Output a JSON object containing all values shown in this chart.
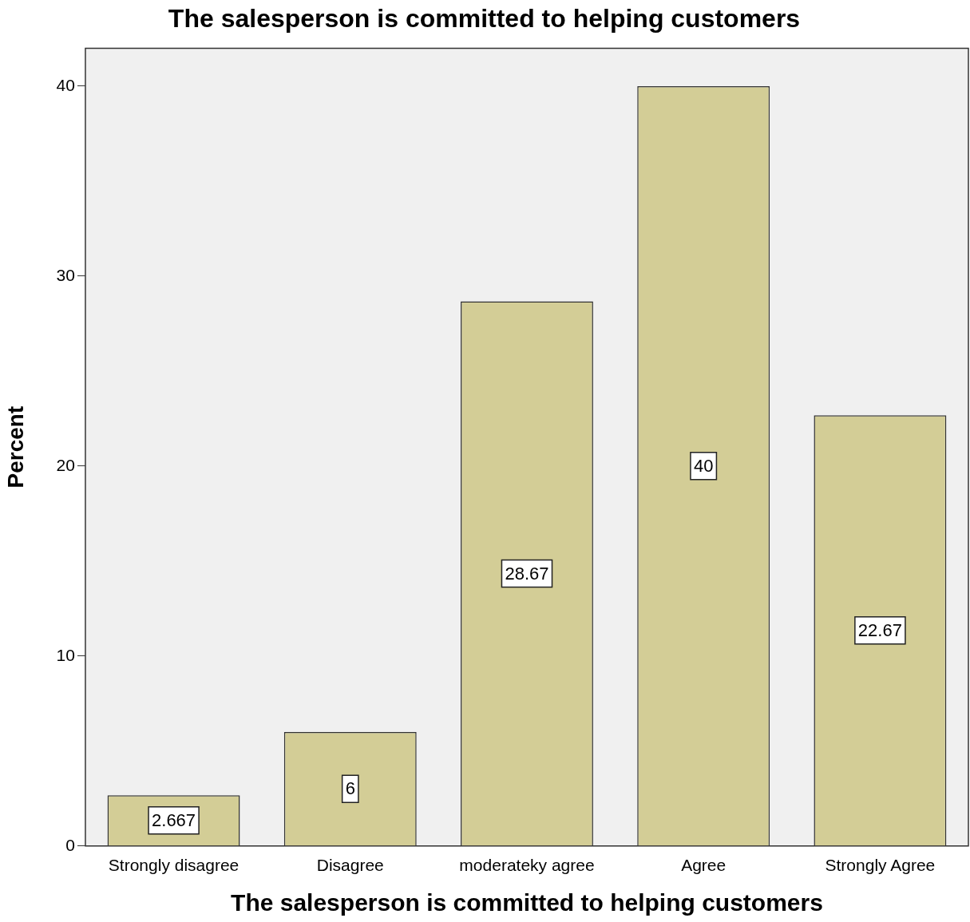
{
  "chart_data": {
    "type": "bar",
    "title": "The salesperson is committed to helping customers",
    "xlabel": "The salesperson is committed to helping customers",
    "ylabel": "Percent",
    "categories": [
      "Strongly disagree",
      "Disagree",
      "moderateky agree",
      "Agree",
      "Strongly Agree"
    ],
    "values": [
      2.667,
      6,
      28.67,
      40,
      22.67
    ],
    "color": "#d3cd96",
    "ylim": [
      0,
      42
    ],
    "yticks": [
      0,
      10,
      20,
      30,
      40
    ],
    "grid": false,
    "legend": false,
    "data_labels": true
  }
}
